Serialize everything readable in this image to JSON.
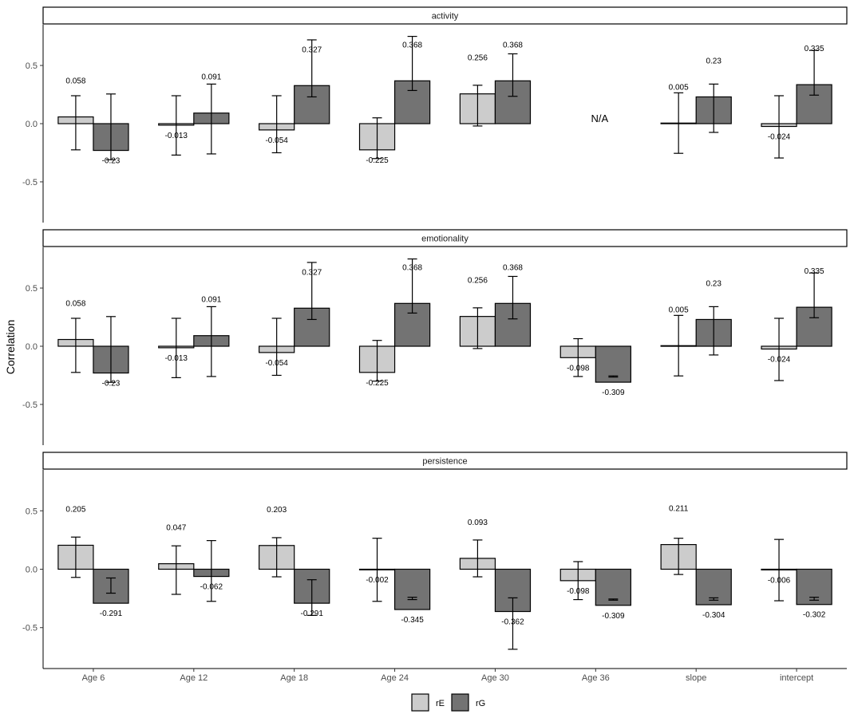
{
  "chart_data": {
    "type": "bar",
    "ylabel": "Correlation",
    "ylim": [
      -0.85,
      0.85
    ],
    "yticks": [
      -0.5,
      0.0,
      0.5
    ],
    "ytick_labels": [
      "-0.5",
      "0.0",
      "0.5"
    ],
    "categories": [
      "Age 6",
      "Age 12",
      "Age 18",
      "Age 24",
      "Age 30",
      "Age 36",
      "slope",
      "intercept"
    ],
    "legend": [
      {
        "key": "rE",
        "label": "rE",
        "color": "#cccccc"
      },
      {
        "key": "rG",
        "label": "rG",
        "color": "#737373"
      }
    ],
    "panels": [
      {
        "title": "activity",
        "rE": {
          "values": [
            0.058,
            -0.013,
            -0.054,
            -0.225,
            0.256,
            null,
            0.005,
            -0.024
          ],
          "labels": [
            "0.058",
            "-0.013",
            "-0.054",
            "-0.225",
            "0.256",
            "",
            "0.005",
            "-0.024"
          ],
          "lower": [
            -0.225,
            -0.27,
            -0.25,
            -0.3,
            -0.02,
            null,
            -0.255,
            -0.295
          ],
          "upper": [
            0.24,
            0.24,
            0.24,
            0.05,
            0.33,
            null,
            0.265,
            0.24
          ]
        },
        "rG": {
          "values": [
            -0.23,
            0.091,
            0.327,
            0.368,
            0.368,
            null,
            0.23,
            0.335
          ],
          "labels": [
            "-0.23",
            "0.091",
            "0.327",
            "0.368",
            "0.368",
            "",
            "0.23",
            "0.335"
          ],
          "lower": [
            -0.31,
            -0.26,
            0.23,
            0.285,
            0.235,
            null,
            -0.075,
            0.245
          ],
          "upper": [
            0.255,
            0.34,
            0.72,
            0.75,
            0.6,
            null,
            0.34,
            0.63
          ]
        },
        "annotations": [
          {
            "category": "Age 36",
            "text": "N/A"
          }
        ]
      },
      {
        "title": "emotionality",
        "rE": {
          "values": [
            0.058,
            -0.013,
            -0.054,
            -0.225,
            0.256,
            -0.098,
            0.005,
            -0.024
          ],
          "labels": [
            "0.058",
            "-0.013",
            "-0.054",
            "-0.225",
            "0.256",
            "-0.098",
            "0.005",
            "-0.024"
          ],
          "lower": [
            -0.225,
            -0.27,
            -0.25,
            -0.3,
            -0.02,
            -0.26,
            -0.255,
            -0.295
          ],
          "upper": [
            0.24,
            0.24,
            0.24,
            0.05,
            0.33,
            0.065,
            0.265,
            0.24
          ]
        },
        "rG": {
          "values": [
            -0.23,
            0.091,
            0.327,
            0.368,
            0.368,
            -0.309,
            0.23,
            0.335
          ],
          "labels": [
            "-0.23",
            "0.091",
            "0.327",
            "0.368",
            "0.368",
            "-0.309",
            "0.23",
            "0.335"
          ],
          "lower": [
            -0.31,
            -0.26,
            0.23,
            0.285,
            0.235,
            -0.265,
            -0.075,
            0.245
          ],
          "upper": [
            0.255,
            0.34,
            0.72,
            0.75,
            0.6,
            -0.255,
            0.34,
            0.63
          ]
        },
        "annotations": []
      },
      {
        "title": "persistence",
        "rE": {
          "values": [
            0.205,
            0.047,
            0.203,
            -0.002,
            0.093,
            -0.098,
            0.211,
            -0.006
          ],
          "labels": [
            "0.205",
            "0.047",
            "0.203",
            "-0.002",
            "0.093",
            "-0.098",
            "0.211",
            "-0.006"
          ],
          "lower": [
            -0.07,
            -0.215,
            -0.065,
            -0.275,
            -0.065,
            -0.26,
            -0.045,
            -0.27
          ],
          "upper": [
            0.275,
            0.2,
            0.27,
            0.265,
            0.25,
            0.065,
            0.265,
            0.255
          ]
        },
        "rG": {
          "values": [
            -0.291,
            -0.062,
            -0.291,
            -0.345,
            -0.362,
            -0.309,
            -0.304,
            -0.302
          ],
          "labels": [
            "-0.291",
            "-0.062",
            "-0.291",
            "-0.345",
            "-0.362",
            "-0.309",
            "-0.304",
            "-0.302"
          ],
          "lower": [
            -0.205,
            -0.275,
            -0.395,
            -0.26,
            -0.685,
            -0.265,
            -0.265,
            -0.265
          ],
          "upper": [
            -0.075,
            0.245,
            -0.09,
            -0.24,
            -0.245,
            -0.255,
            -0.245,
            -0.24
          ]
        },
        "annotations": []
      }
    ]
  }
}
